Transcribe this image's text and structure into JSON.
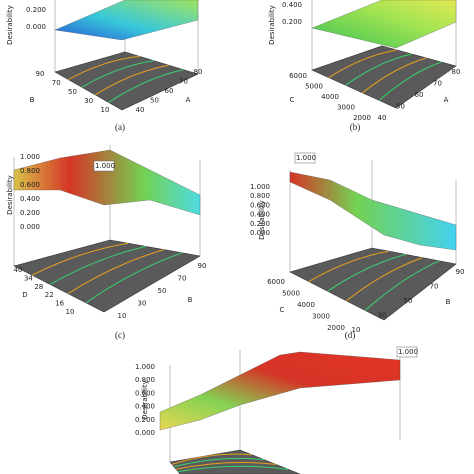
{
  "panels": [
    {
      "label": "(a)",
      "z_title": "Desirability",
      "z_ticks": [
        "0.200",
        "0.000"
      ],
      "left_axis": {
        "title": "B",
        "ticks": [
          "90",
          "70",
          "50",
          "30",
          "10"
        ]
      },
      "right_axis": {
        "title": "A",
        "ticks": [
          "40",
          "50",
          "60",
          "70",
          "80"
        ]
      }
    },
    {
      "label": "(b)",
      "z_title": "Desirability",
      "z_ticks": [
        "0.400",
        "0.200"
      ],
      "left_axis": {
        "title": "C",
        "ticks": [
          "6000",
          "5000",
          "4000",
          "3000",
          "2000"
        ]
      },
      "right_axis": {
        "title": "A",
        "ticks": [
          "40",
          "50",
          "60",
          "70",
          "80"
        ]
      }
    },
    {
      "label": "(c)",
      "z_title": "Desirability",
      "z_ticks": [
        "1.000",
        "0.800",
        "0.600",
        "0.400",
        "0.200",
        "0.000"
      ],
      "annotation": "1.000",
      "left_axis": {
        "title": "D",
        "ticks": [
          "40",
          "34",
          "28",
          "22",
          "16",
          "10"
        ]
      },
      "right_axis": {
        "title": "B",
        "ticks": [
          "10",
          "30",
          "50",
          "70",
          "90"
        ]
      }
    },
    {
      "label": "(d)",
      "z_title": "Desirability",
      "z_ticks": [
        "1.000",
        "0.800",
        "0.600",
        "0.400",
        "0.200",
        "0.000"
      ],
      "annotation": "1.000",
      "left_axis": {
        "title": "C",
        "ticks": [
          "6000",
          "5000",
          "4000",
          "3000",
          "2000"
        ]
      },
      "right_axis": {
        "title": "B",
        "ticks": [
          "10",
          "30",
          "50",
          "70",
          "90"
        ]
      }
    },
    {
      "z_title": "Desirability",
      "z_ticks": [
        "1.000",
        "0.800",
        "0.600",
        "0.400",
        "0.200",
        "0.000"
      ],
      "annotation": "1.000"
    }
  ]
}
